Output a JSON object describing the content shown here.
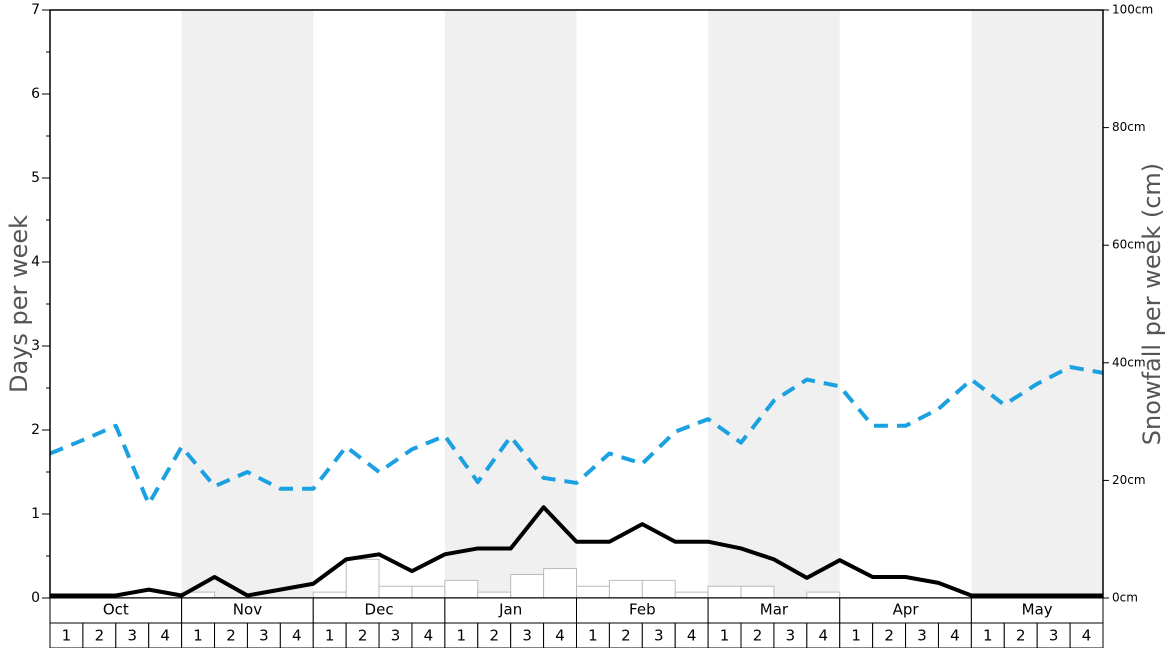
{
  "chart_data": {
    "type": "line",
    "months": [
      "Oct",
      "Nov",
      "Dec",
      "Jan",
      "Feb",
      "Mar",
      "Apr",
      "May"
    ],
    "weeks": [
      "1",
      "2",
      "3",
      "4",
      "1",
      "2",
      "3",
      "4",
      "1",
      "2",
      "3",
      "4",
      "1",
      "2",
      "3",
      "4",
      "1",
      "2",
      "3",
      "4",
      "1",
      "2",
      "3",
      "4",
      "1",
      "2",
      "3",
      "4",
      "1",
      "2",
      "3",
      "4"
    ],
    "shaded_months": [
      1,
      3,
      5,
      7
    ],
    "ylabel": "Days per week",
    "y2label": "Snowfall per week (cm)",
    "ylim": [
      0,
      7
    ],
    "yticks": [
      0,
      1,
      2,
      3,
      4,
      5,
      6,
      7
    ],
    "yminorticks": [
      0.5,
      1.5,
      2.5,
      3.5,
      4.5,
      5.5,
      6.5
    ],
    "y2lim": [
      0,
      100
    ],
    "y2ticks": [
      {
        "value": 0,
        "label": "0cm"
      },
      {
        "value": 20,
        "label": "20cm"
      },
      {
        "value": 40,
        "label": "40cm"
      },
      {
        "value": 60,
        "label": "60cm"
      },
      {
        "value": 80,
        "label": "80cm"
      },
      {
        "value": 100,
        "label": "100cm"
      }
    ],
    "bars": {
      "color": "#ffffff",
      "edge": "#bbbbbb",
      "values": [
        0,
        0,
        0,
        0,
        0.07,
        0,
        0,
        0,
        0.07,
        0.46,
        0.14,
        0.14,
        0.21,
        0.07,
        0.28,
        0.35,
        0.14,
        0.21,
        0.21,
        0.07,
        0.14,
        0.14,
        0,
        0.07,
        0,
        0,
        0,
        0,
        0,
        0,
        0,
        0
      ]
    },
    "xlim": [
      0,
      32
    ],
    "x": [
      0,
      1,
      2,
      3,
      4,
      5,
      6,
      7,
      8,
      9,
      10,
      11,
      12,
      13,
      14,
      15,
      16,
      17,
      18,
      19,
      20,
      21,
      22,
      23,
      24,
      25,
      26,
      27,
      28,
      29,
      30,
      31,
      32
    ],
    "series": [
      {
        "color": "#1ba1e2",
        "dashed": true,
        "values": [
          1.72,
          1.88,
          2.05,
          1.12,
          1.8,
          1.33,
          1.5,
          1.3,
          1.3,
          1.8,
          1.5,
          1.77,
          1.93,
          1.38,
          1.92,
          1.43,
          1.37,
          1.72,
          1.6,
          1.98,
          2.13,
          1.85,
          2.35,
          2.6,
          2.52,
          2.05,
          2.05,
          2.25,
          2.6,
          2.3,
          2.55,
          2.75,
          2.68
        ]
      },
      {
        "color": "#000000",
        "dashed": false,
        "values": [
          0.03,
          0.03,
          0.03,
          0.1,
          0.03,
          0.25,
          0.03,
          0.1,
          0.17,
          0.46,
          0.52,
          0.32,
          0.52,
          0.59,
          0.59,
          1.08,
          0.67,
          0.67,
          0.88,
          0.67,
          0.67,
          0.59,
          0.46,
          0.24,
          0.45,
          0.25,
          0.25,
          0.18,
          0.03,
          0.03,
          0.03,
          0.03,
          0.03
        ]
      }
    ]
  }
}
